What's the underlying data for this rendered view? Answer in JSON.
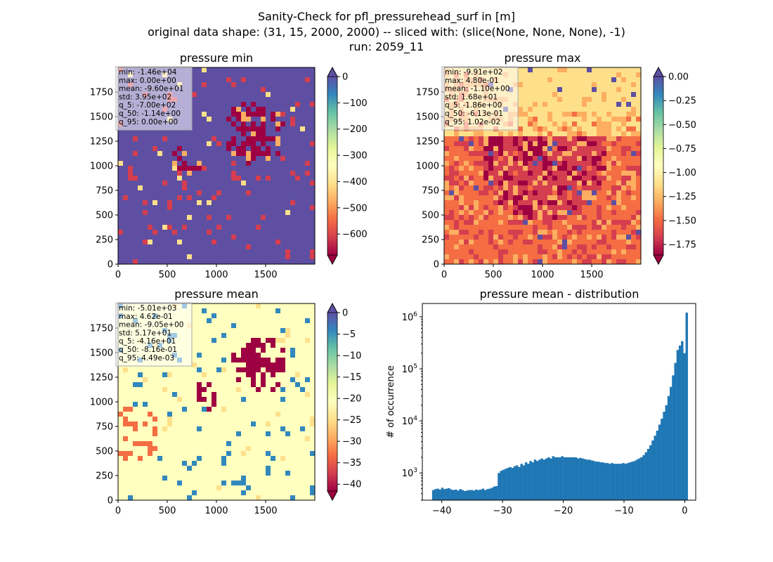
{
  "suptitle": [
    "Sanity-Check for pfl_pressurehead_surf in [m]",
    "original data shape: (31, 15, 2000, 2000) -- sliced with: (slice(None, None, None), -1)",
    "run: 2059_11"
  ],
  "colors": {
    "spectral": [
      "#9e0142",
      "#d53e4f",
      "#f46d43",
      "#fdae61",
      "#fee08b",
      "#ffffbf",
      "#e6f598",
      "#abdda4",
      "#66c2a5",
      "#3288bd",
      "#5e4fa2"
    ],
    "hist_bar": "#1f77b4"
  },
  "chart_data": [
    {
      "type": "heatmap",
      "title": "pressure min",
      "xticks": [
        "0",
        "500",
        "1000",
        "1500"
      ],
      "yticks": [
        "0",
        "250",
        "500",
        "750",
        "1000",
        "1250",
        "1500",
        "1750"
      ],
      "xlim": [
        0,
        2000
      ],
      "ylim": [
        0,
        2000
      ],
      "colorbar": {
        "range": [
          -680,
          0
        ],
        "ticks": [
          "0",
          "−100",
          "−200",
          "−300",
          "−400",
          "−500",
          "−600"
        ],
        "extend": "both"
      },
      "stats": [
        "min: -1.46e+04",
        "max: 0.00e+00",
        "mean: -9.60e+01",
        "std: 3.95e+02",
        "q_5: -7.00e+02",
        "q_50: -1.14e+00",
        "q_95: 0.00e+00"
      ]
    },
    {
      "type": "heatmap",
      "title": "pressure max",
      "xticks": [
        "0",
        "500",
        "1000",
        "1500"
      ],
      "yticks": [
        "0",
        "250",
        "500",
        "750",
        "1000",
        "1250",
        "1500",
        "1750"
      ],
      "xlim": [
        0,
        2000
      ],
      "ylim": [
        0,
        2000
      ],
      "colorbar": {
        "range": [
          -1.86,
          0.0
        ],
        "ticks": [
          "0.00",
          "−0.25",
          "−0.50",
          "−0.75",
          "−1.00",
          "−1.25",
          "−1.50",
          "−1.75"
        ],
        "extend": "both"
      },
      "stats": [
        "min: -9.91e+02",
        "max: 4.80e-01",
        "mean: -1.10e+00",
        "std: 1.68e+01",
        "q_5: -1.86e+00",
        "q_50: -6.13e-01",
        "q_95: 1.02e-02"
      ]
    },
    {
      "type": "heatmap",
      "title": "pressure mean",
      "xticks": [
        "0",
        "500",
        "1000",
        "1500"
      ],
      "yticks": [
        "0",
        "250",
        "500",
        "750",
        "1000",
        "1250",
        "1500",
        "1750"
      ],
      "xlim": [
        0,
        2000
      ],
      "ylim": [
        0,
        2000
      ],
      "colorbar": {
        "range": [
          -41.6,
          0.0
        ],
        "ticks": [
          "0",
          "−5",
          "−10",
          "−15",
          "−20",
          "−25",
          "−30",
          "−35",
          "−40"
        ],
        "extend": "both"
      },
      "stats": [
        "min: -5.01e+03",
        "max: 4.62e-01",
        "mean: -9.05e+00",
        "std: 5.17e+01",
        "q_5: -4.16e+01",
        "q_50: -8.16e-01",
        "q_95: 4.49e-03"
      ]
    },
    {
      "type": "bar",
      "title": "pressure mean - distribution",
      "ylabel": "# of occurrence",
      "xlabel": "",
      "xlim": [
        -43.2,
        1.8
      ],
      "ylim": [
        300,
        1800000
      ],
      "yscale": "log",
      "xticks": [
        "−40",
        "−30",
        "−20",
        "−10",
        "0"
      ],
      "yticks": [
        "10^3",
        "10^4",
        "10^5",
        "10^6"
      ],
      "bin_range": [
        -41.6,
        0.5
      ],
      "values": [
        470,
        490,
        500,
        480,
        520,
        490,
        500,
        510,
        480,
        470,
        480,
        460,
        490,
        470,
        450,
        460,
        470,
        470,
        460,
        480,
        470,
        480,
        500,
        470,
        490,
        500,
        520,
        550,
        560,
        1000,
        1100,
        1150,
        1200,
        1250,
        1300,
        1250,
        1350,
        1400,
        1300,
        1500,
        1400,
        1600,
        1500,
        1700,
        1600,
        1800,
        1700,
        1800,
        1900,
        1800,
        1900,
        2000,
        1900,
        2100,
        2000,
        2000,
        2000,
        2100,
        2000,
        2000,
        2000,
        2000,
        2000,
        2000,
        1900,
        1950,
        1900,
        1850,
        1800,
        1800,
        1750,
        1700,
        1650,
        1650,
        1600,
        1600,
        1550,
        1550,
        1500,
        1550,
        1500,
        1500,
        1500,
        1500,
        1550,
        1500,
        1550,
        1600,
        1650,
        1700,
        1800,
        1900,
        2000,
        2200,
        2500,
        2900,
        3400,
        4200,
        5200,
        6500,
        8500,
        11000,
        15000,
        20000,
        30000,
        45000,
        75000,
        130000,
        230000,
        280000,
        340000,
        200000,
        1200000
      ]
    }
  ]
}
